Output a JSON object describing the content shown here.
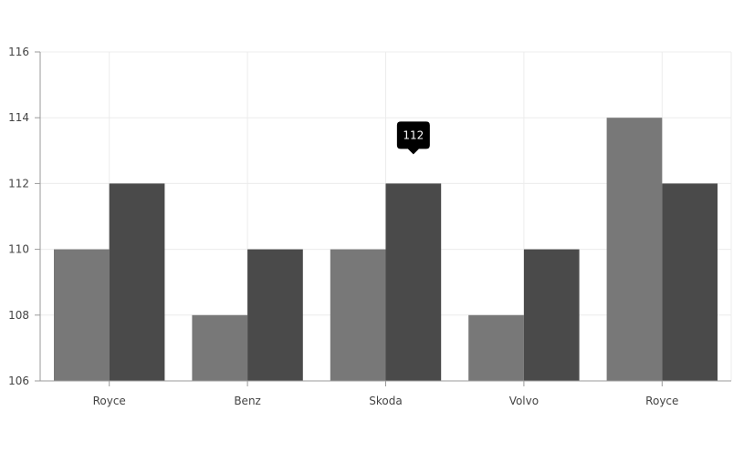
{
  "chart_data": {
    "type": "bar",
    "categories": [
      "Royce",
      "Benz",
      "Skoda",
      "Volvo",
      "Royce"
    ],
    "series": [
      {
        "values": [
          110,
          108,
          110,
          108,
          114
        ]
      },
      {
        "values": [
          112,
          110,
          112,
          110,
          112
        ]
      }
    ],
    "y_ticks": [
      "106",
      "108",
      "110",
      "112",
      "114",
      "116"
    ],
    "ylim": [
      106,
      116
    ],
    "grid": true,
    "colors": [
      "#787878",
      "#4a4a4a"
    ],
    "tooltip": {
      "text": "112",
      "series_index": 1,
      "category_index": 2
    }
  }
}
